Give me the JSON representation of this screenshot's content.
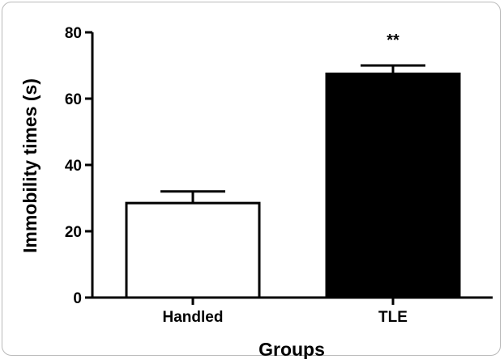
{
  "chart_data": {
    "type": "bar",
    "categories": [
      "Handled",
      "TLE"
    ],
    "values": [
      28.5,
      67.5
    ],
    "errors": [
      3.5,
      2.5
    ],
    "bar_fills": [
      "#ffffff",
      "#000000"
    ],
    "ylim": [
      0,
      80
    ],
    "yticks": [
      0,
      20,
      40,
      60,
      80
    ],
    "xlabel": "Groups",
    "ylabel": "Immobility times (s)",
    "annotations": [
      {
        "category": "TLE",
        "text": "**"
      }
    ],
    "grid": false
  }
}
